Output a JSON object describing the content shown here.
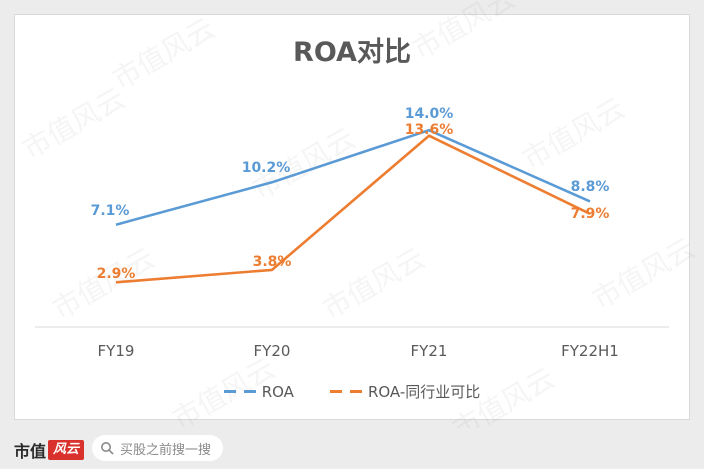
{
  "chart_data": {
    "type": "line",
    "title": "ROA对比",
    "categories": [
      "FY19",
      "FY20",
      "FY21",
      "FY22H1"
    ],
    "series": [
      {
        "name": "ROA",
        "values": [
          7.1,
          10.2,
          14.0,
          8.8
        ],
        "labels": [
          "7.1%",
          "10.2%",
          "14.0%",
          "8.8%"
        ],
        "color": "#5b9bd5"
      },
      {
        "name": "ROA-同行业可比",
        "values": [
          2.9,
          3.8,
          13.6,
          7.9
        ],
        "labels": [
          "2.9%",
          "3.8%",
          "13.6%",
          "7.9%"
        ],
        "color": "#ed7d31"
      }
    ],
    "xlabel": "",
    "ylabel": "",
    "ylim": [
      0,
      16
    ],
    "grid": false,
    "legend": "bottom"
  },
  "watermark": "市值风云",
  "footer": {
    "brand": "市值",
    "brand_stamp": "风云",
    "search_placeholder": "买股之前搜一搜",
    "search_icon": "search-icon"
  }
}
